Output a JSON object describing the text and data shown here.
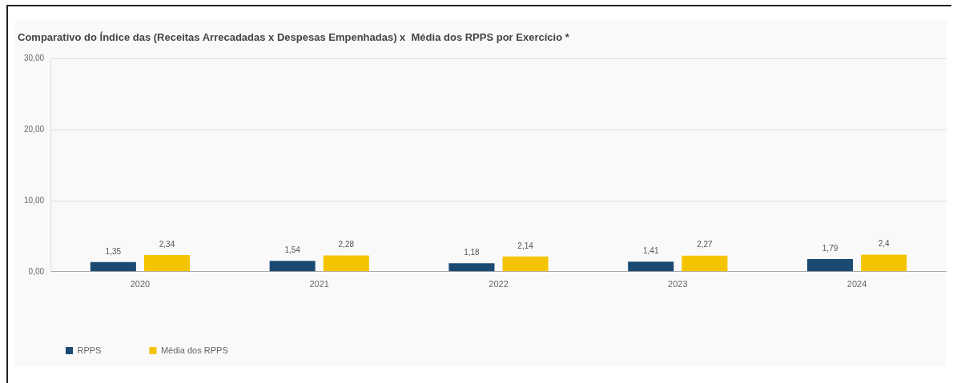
{
  "chart_data": {
    "type": "bar",
    "title": "Comparativo do Índice das (Receitas Arrecadadas x Despesas Empenhadas) x  Média dos RPPS por Exercício *",
    "categories": [
      "2020",
      "2021",
      "2022",
      "2023",
      "2024"
    ],
    "series": [
      {
        "name": "RPPS",
        "color": "#1a4a72",
        "values": [
          1.35,
          1.54,
          1.18,
          1.41,
          1.79
        ],
        "value_labels": [
          "1,35",
          "1,54",
          "1,18",
          "1,41",
          "1,79"
        ]
      },
      {
        "name": "Média dos RPPS",
        "color": "#f5c400",
        "values": [
          2.34,
          2.28,
          2.14,
          2.27,
          2.4
        ],
        "value_labels": [
          "2,34",
          "2,28",
          "2,14",
          "2,27",
          "2,4"
        ]
      }
    ],
    "ylim": [
      0,
      30
    ],
    "yticks": [
      {
        "value": 0,
        "label": "0,00"
      },
      {
        "value": 10,
        "label": "10,00"
      },
      {
        "value": 20,
        "label": "20,00"
      },
      {
        "value": 30,
        "label": "30,00"
      }
    ],
    "grid": "y",
    "legend": "bottom left"
  }
}
